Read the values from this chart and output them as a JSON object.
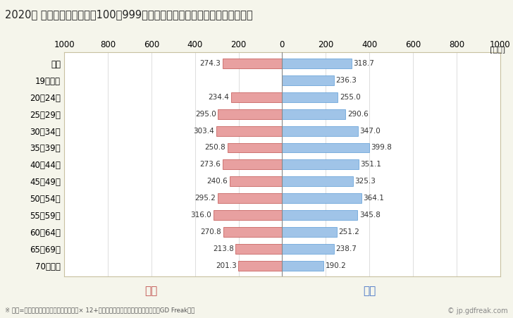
{
  "title": "2020年 民間企業（従業者数100～999人）フルタイム労働者の男女別平均年収",
  "unit_label": "[万円]",
  "footnote": "※ 年収=「きまって支給する現金給与額」× 12+「年間賞与その他特別給与額」としてGD Freak推計",
  "watermark": "© jp.gdfreak.com",
  "categories": [
    "全体",
    "19歳以下",
    "20～24歳",
    "25～29歳",
    "30～34歳",
    "35～39歳",
    "40～44歳",
    "45～49歳",
    "50～54歳",
    "55～59歳",
    "60～64歳",
    "65～69歳",
    "70歳以上"
  ],
  "female_values": [
    274.3,
    0,
    234.4,
    295.0,
    303.4,
    250.8,
    273.6,
    240.6,
    295.2,
    316.0,
    270.8,
    213.8,
    201.3
  ],
  "male_values": [
    318.7,
    236.3,
    255.0,
    290.6,
    347.0,
    399.8,
    351.1,
    325.3,
    364.1,
    345.8,
    251.2,
    238.7,
    190.2
  ],
  "female_color": "#e8a0a0",
  "male_color": "#a0c4e8",
  "female_label": "女性",
  "male_label": "男性",
  "female_label_color": "#c0504d",
  "male_label_color": "#4472c4",
  "xlim": [
    -1000,
    1000
  ],
  "xticks": [
    -1000,
    -800,
    -600,
    -400,
    -200,
    0,
    200,
    400,
    600,
    800,
    1000
  ],
  "xticklabels": [
    "1000",
    "800",
    "600",
    "400",
    "200",
    "0",
    "200",
    "400",
    "600",
    "800",
    "1000"
  ],
  "background_color": "#f5f5eb",
  "plot_bg_color": "#ffffff",
  "grid_color": "#d0d0d0",
  "title_fontsize": 10.5,
  "axis_fontsize": 8.5,
  "bar_height": 0.58,
  "value_fontsize": 7.5,
  "female_border_color": "#c0504d",
  "male_border_color": "#5b9bd5",
  "spine_color": "#c8c0a0",
  "zero_line_color": "#888888",
  "label_fontsize": 11,
  "footnote_fontsize": 6.2,
  "watermark_fontsize": 7
}
